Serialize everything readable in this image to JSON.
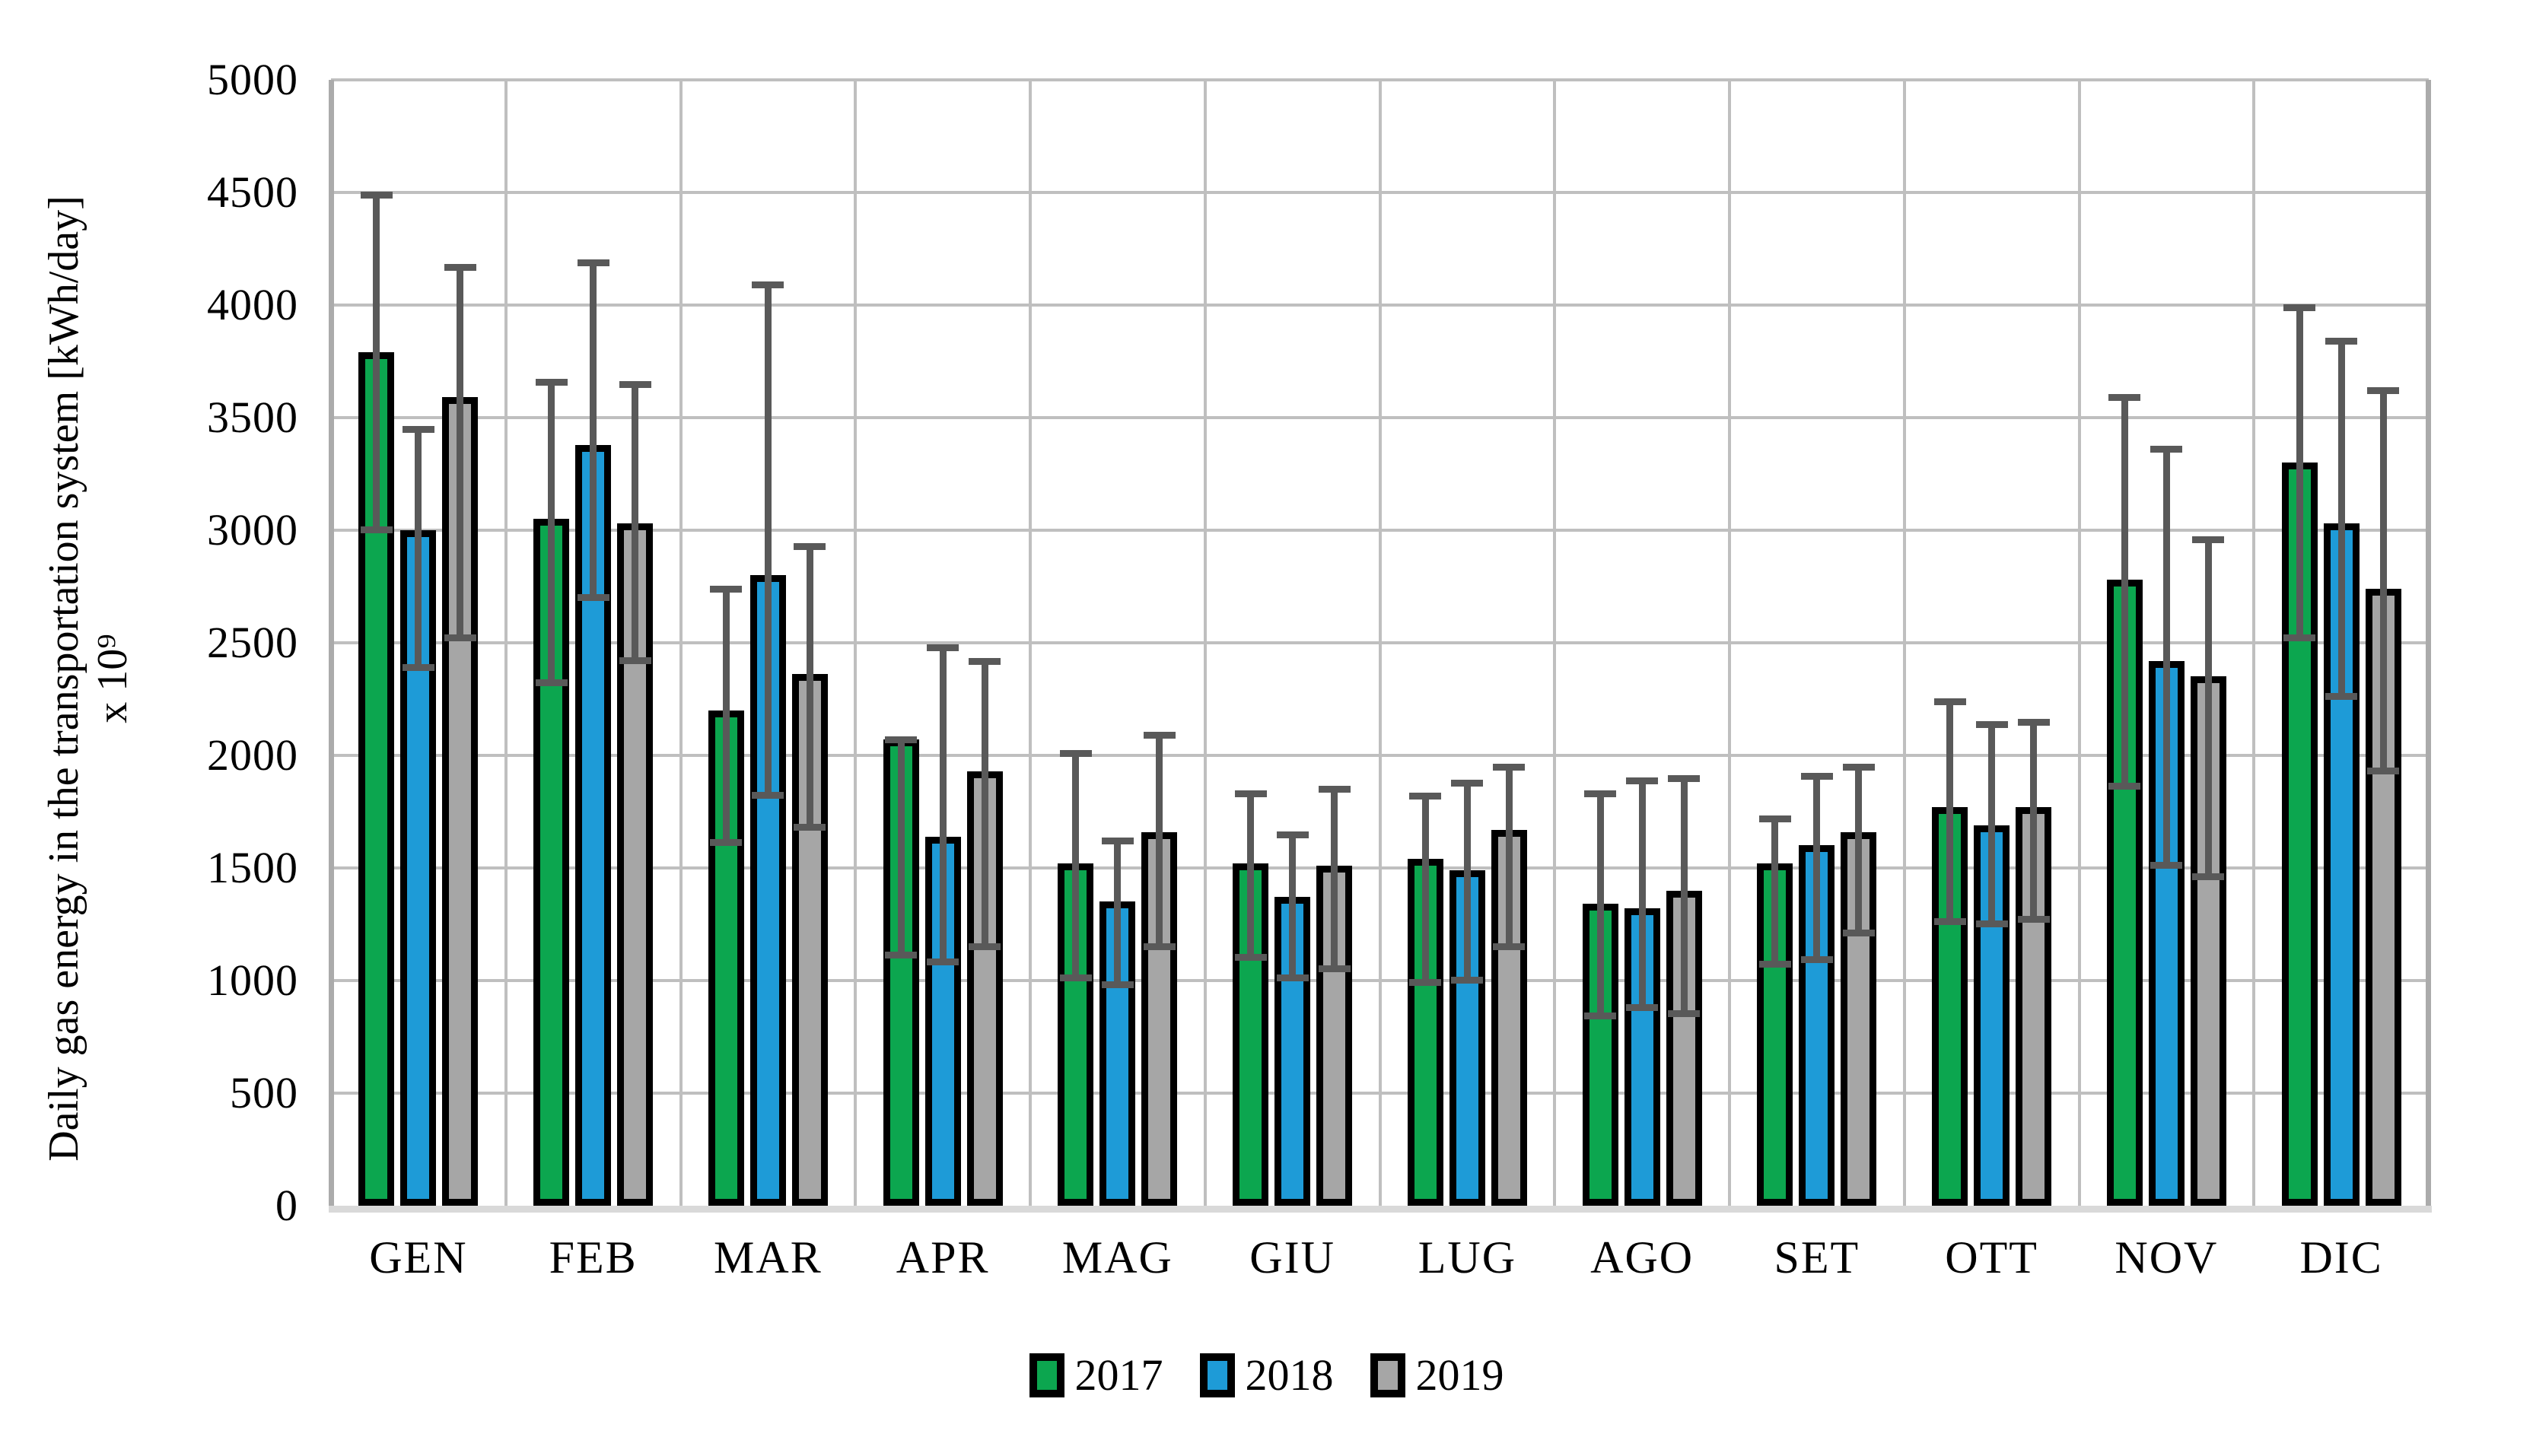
{
  "chart_data": {
    "type": "bar",
    "title": "",
    "ylabel_line1": "Daily gas energy in the transportation system [kWh/day]",
    "ylabel_line2": "x 10⁹",
    "xlabel": "",
    "categories": [
      "GEN",
      "FEB",
      "MAR",
      "APR",
      "MAG",
      "GIU",
      "LUG",
      "AGO",
      "SET",
      "OTT",
      "NOV",
      "DIC"
    ],
    "ylim": [
      0,
      5000
    ],
    "yticks": [
      0,
      500,
      1000,
      1500,
      2000,
      2500,
      3000,
      3500,
      4000,
      4500,
      5000
    ],
    "grid": true,
    "legend_position": "bottom",
    "series": [
      {
        "name": "2017",
        "color": "#0CA64F",
        "values": [
          3790,
          3050,
          2200,
          2070,
          1520,
          1520,
          1540,
          1340,
          1520,
          1770,
          2780,
          3300
        ],
        "err_up": [
          4490,
          3660,
          2740,
          2070,
          2010,
          1830,
          1820,
          1830,
          1720,
          2240,
          3590,
          3990
        ],
        "err_down": [
          3000,
          2320,
          1610,
          1110,
          1010,
          1100,
          990,
          840,
          1070,
          1260,
          1860,
          2520
        ]
      },
      {
        "name": "2018",
        "color": "#1E9BD7",
        "values": [
          3000,
          3380,
          2800,
          1640,
          1350,
          1370,
          1490,
          1320,
          1600,
          1690,
          2420,
          3030
        ],
        "err_up": [
          3450,
          4190,
          4090,
          2480,
          1620,
          1650,
          1880,
          1890,
          1910,
          2140,
          3360,
          3840
        ],
        "err_down": [
          2390,
          2700,
          1820,
          1080,
          980,
          1010,
          1000,
          880,
          1090,
          1250,
          1510,
          2260
        ]
      },
      {
        "name": "2019",
        "color": "#A6A6A6",
        "values": [
          3590,
          3030,
          2360,
          1930,
          1660,
          1510,
          1670,
          1400,
          1660,
          1770,
          2350,
          2740
        ],
        "err_up": [
          4170,
          3650,
          2930,
          2420,
          2090,
          1850,
          1950,
          1900,
          1950,
          2150,
          2960,
          3620
        ],
        "err_down": [
          2520,
          2420,
          1680,
          1150,
          1150,
          1050,
          1150,
          850,
          1210,
          1270,
          1460,
          1930
        ]
      }
    ],
    "colors": {
      "grid": "#BFBFBF",
      "axis_side_border": "#ABABAB",
      "baseline": "#D9D9D9",
      "error_bar": "#595959",
      "bar_outline": "#000000",
      "text": "#000000"
    }
  }
}
